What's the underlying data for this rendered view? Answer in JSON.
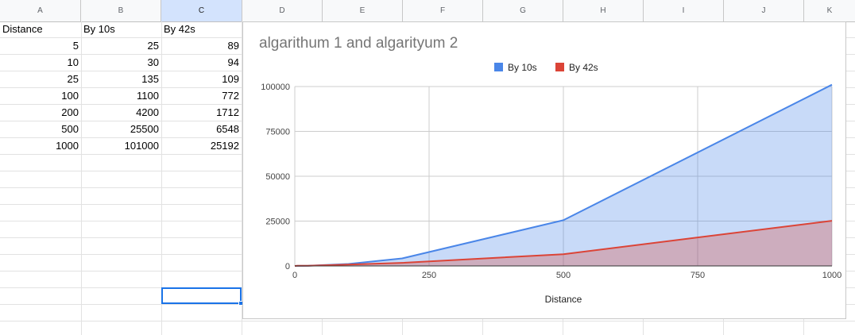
{
  "spreadsheet": {
    "columns": [
      "A",
      "B",
      "C",
      "D",
      "E",
      "F",
      "G",
      "H",
      "I",
      "J",
      "K"
    ],
    "selected_column": "C",
    "headers": [
      "Distance",
      "By 10s",
      "By 42s"
    ],
    "rows": [
      [
        "5",
        "25",
        "89"
      ],
      [
        "10",
        "30",
        "94"
      ],
      [
        "25",
        "135",
        "109"
      ],
      [
        "100",
        "1100",
        "772"
      ],
      [
        "200",
        "4200",
        "1712"
      ],
      [
        "500",
        "25500",
        "6548"
      ],
      [
        "1000",
        "101000",
        "25192"
      ]
    ]
  },
  "chart_data": {
    "type": "area",
    "title": "algarithum 1 and algarityum 2",
    "xlabel": "Distance",
    "ylabel": "",
    "x": [
      5,
      10,
      25,
      100,
      200,
      500,
      1000
    ],
    "series": [
      {
        "name": "By 10s",
        "values": [
          25,
          30,
          135,
          1100,
          4200,
          25500,
          101000
        ],
        "color": "#4a86e8"
      },
      {
        "name": "By 42s",
        "values": [
          89,
          94,
          109,
          772,
          1712,
          6548,
          25192
        ],
        "color": "#db4437"
      }
    ],
    "xlim": [
      0,
      1000
    ],
    "ylim": [
      0,
      100000
    ],
    "x_ticks": [
      "0",
      "250",
      "500",
      "750",
      "1000"
    ],
    "y_ticks": [
      "0",
      "25000",
      "50000",
      "75000",
      "100000"
    ],
    "grid": true,
    "legend": "top"
  }
}
